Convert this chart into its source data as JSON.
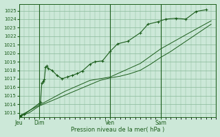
{
  "background_color": "#c8e8d8",
  "plot_bg_color": "#c8ead8",
  "grid_color": "#88b898",
  "line_color": "#1a5c1a",
  "ylabel_text": "Pression niveau de la mer( hPa )",
  "ylim": [
    1012.5,
    1025.8
  ],
  "yticks": [
    1013,
    1014,
    1015,
    1016,
    1017,
    1018,
    1019,
    1020,
    1021,
    1022,
    1023,
    1024,
    1025
  ],
  "xtick_labels": [
    "Jeu",
    "Dim",
    "Ven",
    "Sam"
  ],
  "xtick_positions": [
    0,
    16,
    72,
    112
  ],
  "vline_positions": [
    0,
    16,
    72,
    112
  ],
  "total_hours": 156,
  "line1_x": [
    0,
    1,
    2,
    4,
    16,
    17,
    18,
    19,
    20,
    21,
    22,
    23,
    26,
    30,
    34,
    38,
    42,
    46,
    50,
    56,
    60,
    66,
    72,
    78,
    86,
    96,
    102,
    110,
    116,
    124,
    132,
    140,
    148
  ],
  "line1_y": [
    1012.6,
    1012.6,
    1012.7,
    1012.8,
    1014.1,
    1014.3,
    1016.5,
    1016.7,
    1016.9,
    1018.4,
    1018.5,
    1018.2,
    1018.0,
    1017.4,
    1017.0,
    1017.2,
    1017.4,
    1017.6,
    1017.9,
    1018.7,
    1019.0,
    1019.1,
    1020.2,
    1021.1,
    1021.4,
    1022.4,
    1023.4,
    1023.7,
    1024.0,
    1024.1,
    1024.0,
    1024.9,
    1025.1
  ],
  "line2_x": [
    0,
    8,
    16,
    24,
    32,
    40,
    48,
    56,
    64,
    72,
    80,
    88,
    96,
    104,
    112,
    120,
    128,
    136,
    144,
    152
  ],
  "line2_y": [
    1012.6,
    1013.0,
    1013.8,
    1014.3,
    1014.8,
    1015.3,
    1015.8,
    1016.3,
    1016.8,
    1017.1,
    1017.3,
    1017.6,
    1018.0,
    1018.7,
    1019.5,
    1020.2,
    1021.0,
    1021.8,
    1022.6,
    1023.4
  ],
  "line3_x": [
    0,
    16,
    36,
    56,
    72,
    96,
    112,
    136,
    152
  ],
  "line3_y": [
    1012.6,
    1013.9,
    1015.5,
    1016.8,
    1017.2,
    1018.8,
    1020.5,
    1022.5,
    1023.8
  ]
}
